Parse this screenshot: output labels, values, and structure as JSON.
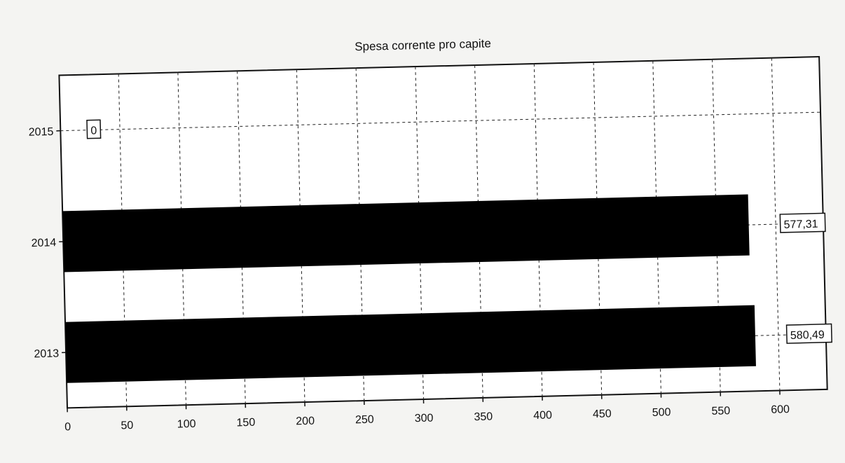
{
  "chart_data": {
    "type": "bar",
    "orientation": "horizontal",
    "title": "Spesa corrente pro capite",
    "categories": [
      "2015",
      "2014",
      "2013"
    ],
    "values": [
      0,
      577.31,
      580.49
    ],
    "value_labels": [
      "0",
      "577,31",
      "580,49"
    ],
    "x_ticks": [
      0,
      50,
      100,
      150,
      200,
      250,
      300,
      350,
      400,
      450,
      500,
      550,
      600
    ],
    "xlim": [
      0,
      640
    ],
    "xlabel": "",
    "ylabel": "",
    "grid": true,
    "legend": "none",
    "bar_color": "#000000"
  }
}
